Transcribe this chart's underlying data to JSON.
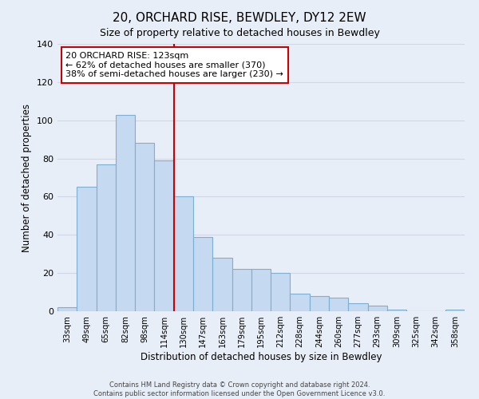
{
  "title": "20, ORCHARD RISE, BEWDLEY, DY12 2EW",
  "subtitle": "Size of property relative to detached houses in Bewdley",
  "xlabel": "Distribution of detached houses by size in Bewdley",
  "ylabel": "Number of detached properties",
  "bar_labels": [
    "33sqm",
    "49sqm",
    "65sqm",
    "82sqm",
    "98sqm",
    "114sqm",
    "130sqm",
    "147sqm",
    "163sqm",
    "179sqm",
    "195sqm",
    "212sqm",
    "228sqm",
    "244sqm",
    "260sqm",
    "277sqm",
    "293sqm",
    "309sqm",
    "325sqm",
    "342sqm",
    "358sqm"
  ],
  "bar_values": [
    2,
    65,
    77,
    103,
    88,
    79,
    60,
    39,
    28,
    22,
    22,
    20,
    9,
    8,
    7,
    4,
    3,
    1,
    0,
    0,
    1
  ],
  "bar_color": "#c5d9f0",
  "bar_edge_color": "#7bafd4",
  "background_color": "#e8eef7",
  "grid_color": "#d0d8e8",
  "vline_color": "#cc0000",
  "vline_x_idx": 6,
  "annotation_text": "20 ORCHARD RISE: 123sqm\n← 62% of detached houses are smaller (370)\n38% of semi-detached houses are larger (230) →",
  "annotation_box_color": "#ffffff",
  "annotation_box_edge": "#cc0000",
  "ylim": [
    0,
    140
  ],
  "footer_line1": "Contains HM Land Registry data © Crown copyright and database right 2024.",
  "footer_line2": "Contains public sector information licensed under the Open Government Licence v3.0."
}
